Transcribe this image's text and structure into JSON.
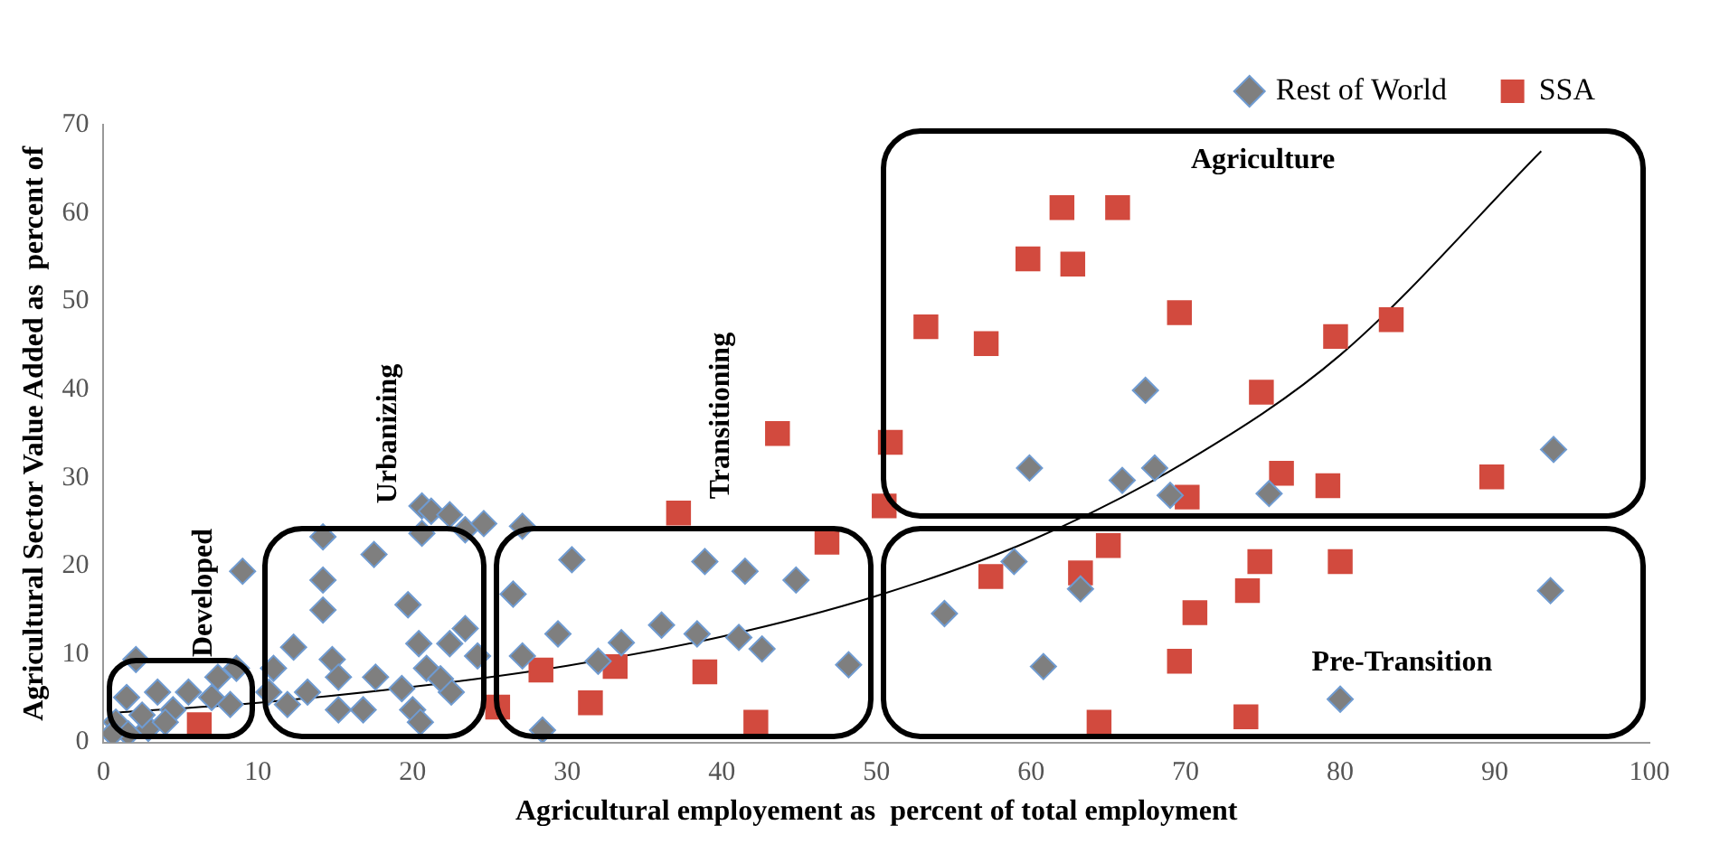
{
  "chart_data": {
    "type": "scatter",
    "xlabel": "Agricultural employement as  percent of total employment",
    "ylabel": "Agricultural Sector Value Added as  percent of",
    "xlim": [
      0,
      100
    ],
    "xticks": [
      0,
      10,
      20,
      30,
      40,
      50,
      60,
      70,
      80,
      90,
      100
    ],
    "ylim": [
      0,
      70
    ],
    "yticks": [
      0,
      10,
      20,
      30,
      40,
      50,
      60,
      70
    ],
    "grid": false,
    "legend": "top right",
    "annotations": [
      "Developed",
      "Urbanizing",
      "Transitioning",
      "Agriculture",
      "Pre-Transition"
    ],
    "series": [
      {
        "name": "Rest of World",
        "color": "#7f7f7f",
        "marker": "diamond",
        "x": [
          67.4,
          59.9,
          65.9,
          68,
          69,
          75.4,
          93.8,
          58.9,
          63.2,
          54.4,
          60.8,
          80,
          93.6,
          27.1,
          30.3,
          26.5,
          29.4,
          27.1,
          36.1,
          38.9,
          41.5,
          44.8,
          38.4,
          41.1,
          42.6,
          33.5,
          32,
          48.2,
          28.4,
          2.1,
          9,
          14.2,
          17.5,
          14.2,
          14.2,
          19.7,
          20.6,
          21.2,
          22.4,
          20.6,
          23.4,
          24.6,
          20.4,
          20.9,
          20,
          20.5,
          23.4,
          22.4,
          24.2,
          12.3,
          11,
          14.8,
          15.2,
          16.8,
          17.6,
          13.2,
          10.7,
          11.9,
          15.2,
          19.3,
          22.5,
          21.8,
          1.5,
          3.5,
          5.5,
          7.4,
          8.6,
          4.5,
          0.8,
          1.6,
          2.9,
          7,
          8.2,
          2.5,
          0.6,
          4
        ],
        "values": [
          39.9,
          31.1,
          29.7,
          31.1,
          28,
          28.2,
          33.2,
          20.5,
          17.4,
          14.6,
          8.6,
          4.9,
          17.2,
          24.5,
          20.7,
          16.8,
          12.3,
          9.8,
          13.3,
          20.5,
          19.4,
          18.4,
          12.3,
          11.9,
          10.6,
          11.3,
          9.2,
          8.8,
          1.4,
          9.4,
          19.4,
          23.3,
          21.3,
          18.4,
          15,
          15.6,
          26.8,
          26.2,
          25.8,
          23.7,
          24.1,
          24.8,
          11.2,
          8.4,
          3.7,
          2.3,
          12.9,
          11.2,
          9.8,
          10.8,
          8.4,
          9.4,
          7.4,
          3.7,
          7.4,
          5.7,
          5.7,
          4.3,
          3.7,
          6.1,
          5.7,
          7.2,
          5.1,
          5.7,
          5.7,
          7.4,
          8.4,
          3.7,
          2.3,
          1,
          1.6,
          5.1,
          4.3,
          3.1,
          1,
          2.3
        ]
      },
      {
        "name": "SSA",
        "color": "#d24a3e",
        "marker": "square",
        "x": [
          6.2,
          25.5,
          28.3,
          31.5,
          33.1,
          38.9,
          42.2,
          37.2,
          43.6,
          46.8,
          50.5,
          50.9,
          62,
          65.6,
          59.8,
          62.7,
          53.2,
          57.1,
          69.6,
          79.7,
          83.3,
          74.9,
          76.2,
          79.2,
          70.1,
          89.8,
          65,
          57.4,
          63.2,
          74.8,
          80,
          74,
          70.6,
          69.6,
          64.4,
          73.9
        ],
        "values": [
          2,
          4,
          8.2,
          4.5,
          8.6,
          8,
          2.3,
          26,
          35,
          22.7,
          26.8,
          34,
          60.6,
          60.6,
          54.8,
          54.2,
          47.1,
          45.2,
          48.7,
          46,
          47.9,
          39.7,
          30.5,
          29.1,
          27.8,
          30.1,
          22.3,
          18.8,
          19.2,
          20.5,
          20.5,
          17.2,
          14.7,
          9.2,
          2.3,
          2.9
        ]
      },
      {
        "type": "line",
        "color": "#000000",
        "marker": "none",
        "x": [
          1,
          10,
          20,
          30,
          40,
          50,
          60,
          70,
          80,
          93
        ],
        "values": [
          3.4,
          4.5,
          6.3,
          8.7,
          12,
          16.6,
          22.9,
          31.8,
          43.9,
          67
        ]
      }
    ]
  }
}
